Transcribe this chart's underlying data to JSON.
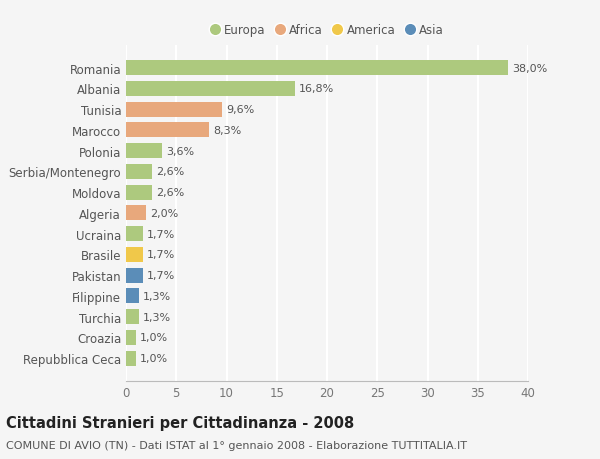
{
  "title": "Cittadini Stranieri per Cittadinanza - 2008",
  "subtitle": "COMUNE DI AVIO (TN) - Dati ISTAT al 1° gennaio 2008 - Elaborazione TUTTITALIA.IT",
  "categories": [
    "Romania",
    "Albania",
    "Tunisia",
    "Marocco",
    "Polonia",
    "Serbia/Montenegro",
    "Moldova",
    "Algeria",
    "Ucraina",
    "Brasile",
    "Pakistan",
    "Filippine",
    "Turchia",
    "Croazia",
    "Repubblica Ceca"
  ],
  "values": [
    38.0,
    16.8,
    9.6,
    8.3,
    3.6,
    2.6,
    2.6,
    2.0,
    1.7,
    1.7,
    1.7,
    1.3,
    1.3,
    1.0,
    1.0
  ],
  "labels": [
    "38,0%",
    "16,8%",
    "9,6%",
    "8,3%",
    "3,6%",
    "2,6%",
    "2,6%",
    "2,0%",
    "1,7%",
    "1,7%",
    "1,7%",
    "1,3%",
    "1,3%",
    "1,0%",
    "1,0%"
  ],
  "continents": [
    "Europa",
    "Europa",
    "Africa",
    "Africa",
    "Europa",
    "Europa",
    "Europa",
    "Africa",
    "Europa",
    "America",
    "Asia",
    "Asia",
    "Europa",
    "Europa",
    "Europa"
  ],
  "colors": {
    "Europa": "#adc97e",
    "Africa": "#e8a87c",
    "America": "#f0c84a",
    "Asia": "#5b8db8"
  },
  "xlim": [
    0,
    40
  ],
  "xticks": [
    0,
    5,
    10,
    15,
    20,
    25,
    30,
    35,
    40
  ],
  "background_color": "#f5f5f5",
  "grid_color": "#ffffff",
  "bar_height": 0.72,
  "title_fontsize": 10.5,
  "subtitle_fontsize": 8,
  "tick_fontsize": 8.5,
  "label_fontsize": 8,
  "legend_fontsize": 8.5
}
